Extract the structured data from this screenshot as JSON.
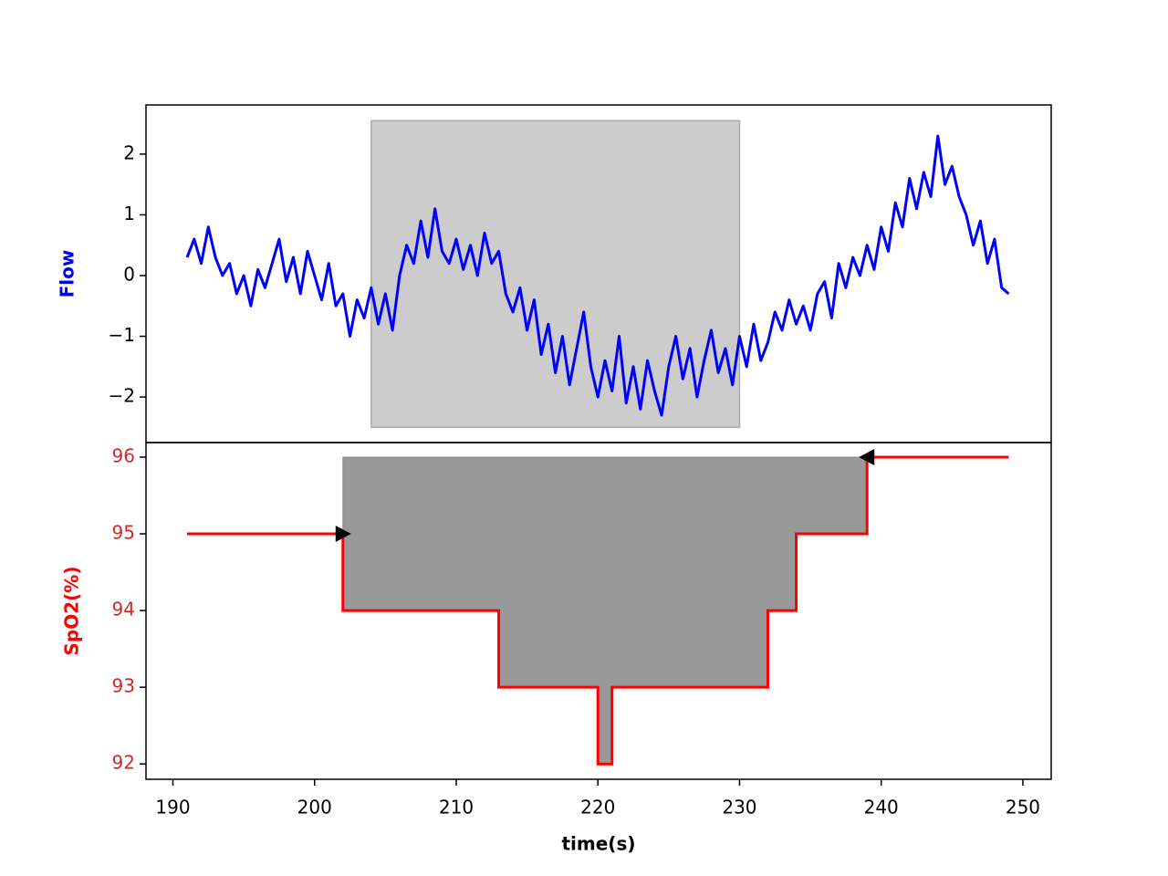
{
  "chart_data": [
    {
      "type": "line",
      "ylabel": "Flow",
      "ylabel_color": "#0000ff",
      "color": "#0000ff",
      "xlim": [
        188.1,
        252
      ],
      "ylim": [
        -2.75,
        2.81
      ],
      "yticks": [
        {
          "value": -2,
          "label": "−2"
        },
        {
          "value": -1,
          "label": "−1"
        },
        0,
        1,
        2
      ],
      "span": {
        "x": [
          204,
          230
        ],
        "y": [
          -2.5,
          2.55
        ],
        "color": "#cccccc"
      },
      "x": [
        191,
        191.5,
        192,
        192.5,
        193,
        193.5,
        194,
        194.5,
        195,
        195.5,
        196,
        196.5,
        197,
        197.5,
        198,
        198.5,
        199,
        199.5,
        200,
        200.5,
        201,
        201.5,
        202,
        202.5,
        203,
        203.5,
        204,
        204.5,
        205,
        205.5,
        206,
        206.5,
        207,
        207.5,
        208,
        208.5,
        209,
        209.5,
        210,
        210.5,
        211,
        211.5,
        212,
        212.5,
        213,
        213.5,
        214,
        214.5,
        215,
        215.5,
        216,
        216.5,
        217,
        217.5,
        218,
        218.5,
        219,
        219.5,
        220,
        220.5,
        221,
        221.5,
        222,
        222.5,
        223,
        223.5,
        224,
        224.5,
        225,
        225.5,
        226,
        226.5,
        227,
        227.5,
        228,
        228.5,
        229,
        229.5,
        230,
        230.5,
        231,
        231.5,
        232,
        232.5,
        233,
        233.5,
        234,
        234.5,
        235,
        235.5,
        236,
        236.5,
        237,
        237.5,
        238,
        238.5,
        239,
        239.5,
        240,
        240.5,
        241,
        241.5,
        242,
        242.5,
        243,
        243.5,
        244,
        244.5,
        245,
        245.5,
        246,
        246.5,
        247,
        247.5,
        248,
        248.5,
        249
      ],
      "values": [
        0.3,
        0.6,
        0.2,
        0.8,
        0.3,
        0.0,
        0.2,
        -0.3,
        0.0,
        -0.5,
        0.1,
        -0.2,
        0.2,
        0.6,
        -0.1,
        0.3,
        -0.3,
        0.4,
        0.0,
        -0.4,
        0.2,
        -0.5,
        -0.3,
        -1.0,
        -0.4,
        -0.7,
        -0.2,
        -0.8,
        -0.3,
        -0.9,
        0.0,
        0.5,
        0.2,
        0.9,
        0.3,
        1.1,
        0.4,
        0.2,
        0.6,
        0.1,
        0.5,
        0.0,
        0.7,
        0.2,
        0.4,
        -0.3,
        -0.6,
        -0.2,
        -0.9,
        -0.4,
        -1.3,
        -0.8,
        -1.6,
        -1.0,
        -1.8,
        -1.2,
        -0.6,
        -1.5,
        -2.0,
        -1.4,
        -1.9,
        -1.0,
        -2.1,
        -1.5,
        -2.2,
        -1.4,
        -1.9,
        -2.3,
        -1.5,
        -1.0,
        -1.7,
        -1.2,
        -2.0,
        -1.4,
        -0.9,
        -1.6,
        -1.2,
        -1.8,
        -1.0,
        -1.5,
        -0.8,
        -1.4,
        -1.1,
        -0.6,
        -0.9,
        -0.4,
        -0.8,
        -0.5,
        -0.9,
        -0.3,
        -0.1,
        -0.7,
        0.2,
        -0.2,
        0.3,
        0.0,
        0.5,
        0.1,
        0.8,
        0.4,
        1.2,
        0.8,
        1.6,
        1.1,
        1.7,
        1.3,
        2.3,
        1.5,
        1.8,
        1.3,
        1.0,
        0.5,
        0.9,
        0.2,
        0.6,
        -0.2,
        -0.3
      ]
    },
    {
      "type": "step",
      "ylabel": "SpO2(%)",
      "ylabel_color": "#ff0000",
      "tick_color": "#d62728",
      "color": "#ff0000",
      "xlabel": "time(s)",
      "xlim": [
        188.1,
        252
      ],
      "ylim": [
        91.8,
        96.19
      ],
      "xticks": [
        190,
        200,
        210,
        220,
        230,
        240,
        250
      ],
      "yticks": [
        92,
        93,
        94,
        95,
        96
      ],
      "x": [
        191,
        202,
        213,
        220,
        221,
        232,
        234,
        239,
        249
      ],
      "values": [
        95,
        94,
        93,
        92,
        93,
        94,
        95,
        96,
        96
      ],
      "fill": {
        "x": [
          202,
          239
        ],
        "to": 96,
        "color": "#999999"
      },
      "arrows": [
        {
          "x": 202,
          "y": 95,
          "direction": "right"
        },
        {
          "x": 239,
          "y": 96,
          "direction": "left"
        }
      ]
    }
  ]
}
